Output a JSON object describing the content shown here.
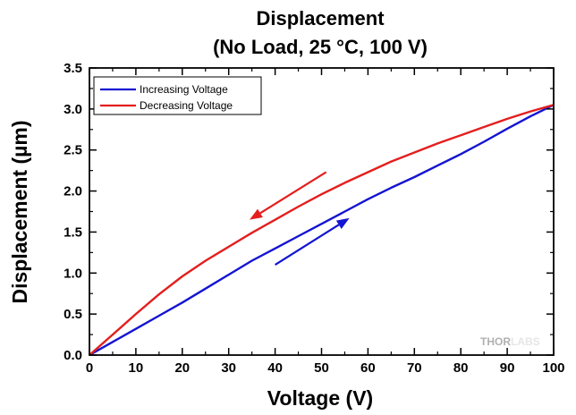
{
  "chart_data": {
    "type": "line",
    "title_line1": "Displacement",
    "title_line2": "(No Load, 25 °C, 100 V)",
    "xlabel": "Voltage (V)",
    "ylabel": "Displacement (µm)",
    "xlim": [
      0,
      100
    ],
    "ylim": [
      0,
      3.5
    ],
    "x_ticks": [
      "0",
      "10",
      "20",
      "30",
      "40",
      "50",
      "60",
      "70",
      "80",
      "90",
      "100"
    ],
    "y_ticks": [
      "0.0",
      "0.5",
      "1.0",
      "1.5",
      "2.0",
      "2.5",
      "3.0",
      "3.5"
    ],
    "grid": false,
    "legend_position": "top-left",
    "series": [
      {
        "name": "Increasing Voltage",
        "color": "#1414d2",
        "x": [
          0,
          5,
          10,
          15,
          20,
          25,
          30,
          35,
          40,
          45,
          50,
          55,
          60,
          65,
          70,
          75,
          80,
          85,
          90,
          95,
          100
        ],
        "y": [
          0,
          0.16,
          0.32,
          0.48,
          0.64,
          0.81,
          0.98,
          1.15,
          1.3,
          1.45,
          1.6,
          1.75,
          1.9,
          2.04,
          2.17,
          2.31,
          2.45,
          2.6,
          2.76,
          2.91,
          3.05
        ]
      },
      {
        "name": "Decreasing Voltage",
        "color": "#e41e1e",
        "x": [
          0,
          5,
          10,
          15,
          20,
          25,
          30,
          35,
          40,
          45,
          50,
          55,
          60,
          65,
          70,
          75,
          80,
          85,
          90,
          95,
          100
        ],
        "y": [
          0,
          0.25,
          0.5,
          0.74,
          0.96,
          1.15,
          1.32,
          1.49,
          1.65,
          1.81,
          1.96,
          2.1,
          2.23,
          2.36,
          2.47,
          2.58,
          2.68,
          2.78,
          2.88,
          2.97,
          3.05
        ]
      }
    ],
    "annotations": [
      {
        "type": "arrow",
        "color": "#e41e1e",
        "from": [
          51,
          2.23
        ],
        "to": [
          34.5,
          1.65
        ]
      },
      {
        "type": "arrow",
        "color": "#1414d2",
        "from": [
          40,
          1.1
        ],
        "to": [
          56,
          1.67
        ]
      }
    ]
  },
  "watermark": {
    "brand_part1": "THOR",
    "brand_part2": "LABS"
  }
}
